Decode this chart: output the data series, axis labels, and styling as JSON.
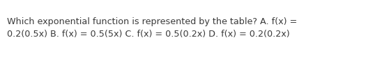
{
  "line1": "Which exponential function is represented by the table? A. f(x) =",
  "line2": "0.2(0.5x) B. f(x) = 0.5(5x) C. f(x) = 0.5(0.2x) D. f(x) = 0.2(0.2x)",
  "font_size": 9.2,
  "font_family": "DejaVu Sans",
  "font_weight": "normal",
  "text_color": "#3a3a3a",
  "background_color": "#ffffff",
  "fig_width": 5.58,
  "fig_height": 0.84,
  "dpi": 100
}
